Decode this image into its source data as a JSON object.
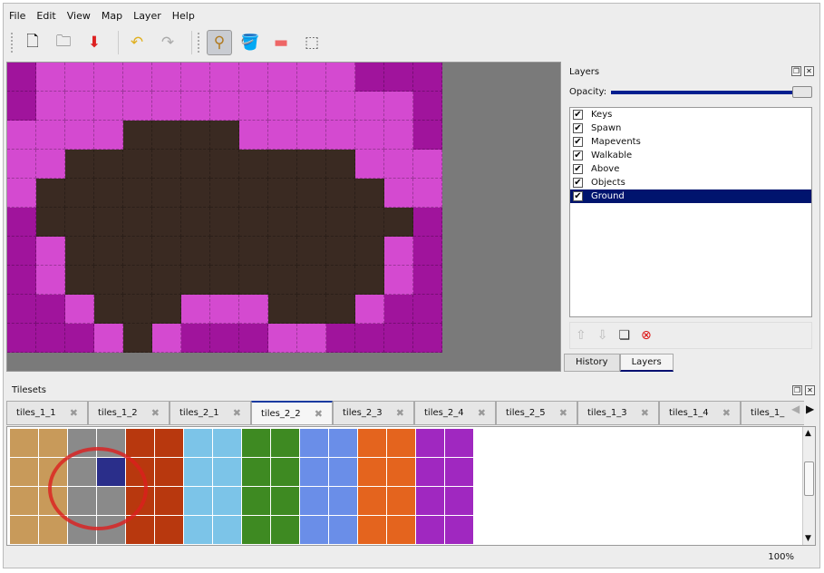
{
  "menu": [
    "File",
    "Edit",
    "View",
    "Map",
    "Layer",
    "Help"
  ],
  "toolbar": [
    {
      "name": "new-icon",
      "glyph": "🗋"
    },
    {
      "name": "open-icon",
      "glyph": "🗀"
    },
    {
      "name": "save-icon",
      "glyph": "⬇"
    },
    {
      "name": "undo-icon",
      "glyph": "↶"
    },
    {
      "name": "redo-icon",
      "glyph": "↷"
    },
    {
      "name": "stamp-brush-icon",
      "glyph": "⚲"
    },
    {
      "name": "bucket-fill-icon",
      "glyph": "🪣"
    },
    {
      "name": "eraser-icon",
      "glyph": "▬"
    },
    {
      "name": "rect-select-icon",
      "glyph": "⬚"
    }
  ],
  "map": {
    "rows": [
      "DPPPPPPPPPPPDDD",
      "DPPPPPPPPPPPPPD",
      "PPPPBBBBPPPPPPD",
      "PPBBBBBBBBBBPPP",
      "PBBBBBBBBBBBBPP",
      "DBBBBBBBBBBBBBD",
      "DPBBBBBBBBBBBPD",
      "DPBBBBBBBBBBBPD",
      "DDPBBBPPPBBBPDD",
      "DDDPBPDDDPPDDDD"
    ],
    "colors": {
      "D": "#a0149c",
      "P": "#d44ad0",
      "B": "#3a2a22"
    }
  },
  "layers_panel": {
    "title": "Layers",
    "opacity_label": "Opacity:",
    "opacity": 1.0,
    "layers": [
      {
        "name": "Keys",
        "visible": true
      },
      {
        "name": "Spawn",
        "visible": true
      },
      {
        "name": "Mapevents",
        "visible": true
      },
      {
        "name": "Walkable",
        "visible": true
      },
      {
        "name": "Above",
        "visible": true
      },
      {
        "name": "Objects",
        "visible": true
      },
      {
        "name": "Ground",
        "visible": true,
        "selected": true
      }
    ],
    "tabs": [
      "History",
      "Layers"
    ],
    "active_tab": "Layers"
  },
  "tilesets": {
    "title": "Tilesets",
    "tabs": [
      "tiles_1_1",
      "tiles_1_2",
      "tiles_2_1",
      "tiles_2_2",
      "tiles_2_3",
      "tiles_2_4",
      "tiles_2_5",
      "tiles_1_3",
      "tiles_1_4",
      "tiles_1_"
    ],
    "active_tab": "tiles_2_2",
    "tile_colors": [
      "#c89a5a",
      "#c89a5a",
      "#8a8a8a",
      "#8a8a8a",
      "#b8380e",
      "#b8380e",
      "#7cc4e8",
      "#7cc4e8",
      "#3e8a22",
      "#3e8a22",
      "#6a8ee8",
      "#6a8ee8",
      "#e4641e",
      "#e4641e",
      "#a028c0",
      "#a028c0"
    ],
    "selected_tile_color": "#2a2e8a"
  },
  "status": {
    "zoom": "100%"
  }
}
